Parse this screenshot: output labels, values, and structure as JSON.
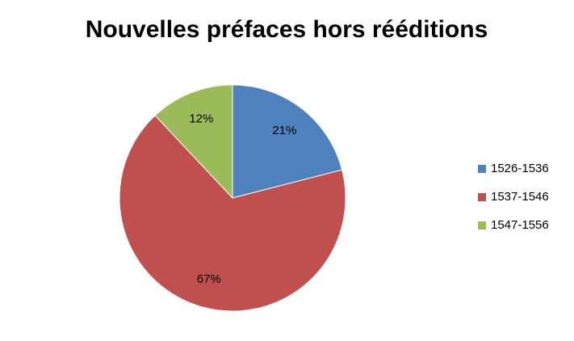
{
  "chart_data": {
    "type": "pie",
    "title": "Nouvelles préfaces hors rééditions",
    "categories": [
      "1526-1536",
      "1537-1546",
      "1547-1556"
    ],
    "values": [
      21,
      67,
      12
    ],
    "value_labels": [
      "21%",
      "67%",
      "12%"
    ],
    "colors": [
      "#4f81bd",
      "#c0504d",
      "#9bbb59"
    ],
    "legend": "right"
  }
}
